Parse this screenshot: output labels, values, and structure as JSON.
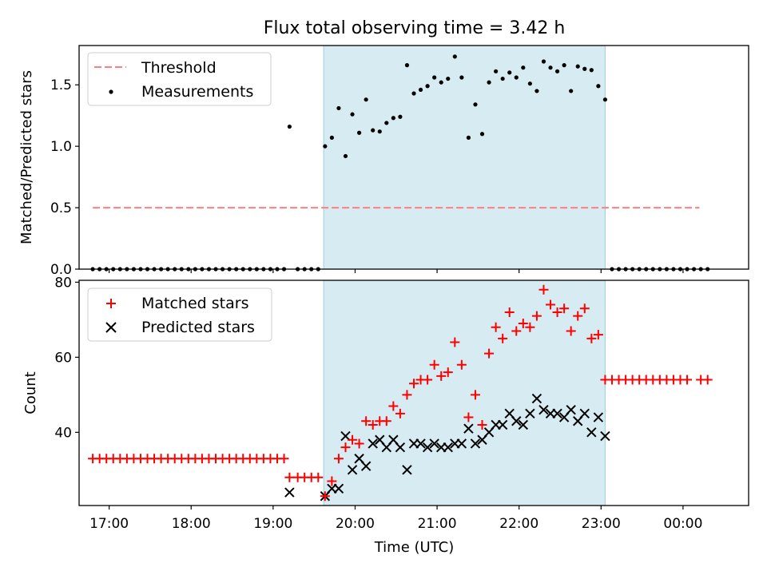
{
  "title": "Flux total observing time = 3.42 h",
  "colors": {
    "threshold": "#ff7f7f",
    "measurement": "#000000",
    "matched": "#ff0000",
    "predicted": "#000000",
    "span": "#add8e6"
  },
  "chart_data": [
    {
      "type": "scatter",
      "panel": "top",
      "ylabel": "Matched/Predicted stars",
      "xlabel": "",
      "xlim": [
        "16:38",
        "00:48"
      ],
      "ylim": [
        0,
        1.82
      ],
      "yticks": [
        0.0,
        0.5,
        1.0,
        1.5
      ],
      "ytick_labels": [
        "0.0",
        "0.5",
        "1.0",
        "1.5"
      ],
      "grid": false,
      "legend_position": "upper-left",
      "highlight_span": [
        "19:37",
        "23:03"
      ],
      "threshold": {
        "name": "Threshold",
        "y": 0.5,
        "x_range": [
          "16:48",
          "00:12"
        ]
      },
      "series": [
        {
          "name": "Measurements",
          "marker": "dot",
          "x": [
            "16:48",
            "16:53",
            "16:58",
            "17:03",
            "17:08",
            "17:13",
            "17:18",
            "17:23",
            "17:28",
            "17:33",
            "17:38",
            "17:43",
            "17:48",
            "17:53",
            "17:58",
            "18:03",
            "18:08",
            "18:13",
            "18:18",
            "18:23",
            "18:28",
            "18:33",
            "18:38",
            "18:43",
            "18:48",
            "18:53",
            "18:58",
            "19:03",
            "19:08",
            "19:12",
            "19:18",
            "19:23",
            "19:28",
            "19:33",
            "19:38",
            "19:43",
            "19:48",
            "19:53",
            "19:58",
            "20:03",
            "20:08",
            "20:13",
            "20:18",
            "20:23",
            "20:28",
            "20:33",
            "20:38",
            "20:43",
            "20:48",
            "20:53",
            "20:58",
            "21:03",
            "21:08",
            "21:13",
            "21:18",
            "21:23",
            "21:28",
            "21:33",
            "21:38",
            "21:43",
            "21:48",
            "21:53",
            "21:58",
            "22:03",
            "22:08",
            "22:13",
            "22:18",
            "22:23",
            "22:28",
            "22:33",
            "22:38",
            "22:43",
            "22:48",
            "22:53",
            "22:58",
            "23:03",
            "23:08",
            "23:13",
            "23:18",
            "23:23",
            "23:28",
            "23:33",
            "23:38",
            "23:43",
            "23:48",
            "23:53",
            "23:58",
            "00:03",
            "00:08",
            "00:13",
            "00:18"
          ],
          "y": [
            0,
            0,
            0,
            0,
            0,
            0,
            0,
            0,
            0,
            0,
            0,
            0,
            0,
            0,
            0,
            0,
            0,
            0,
            0,
            0,
            0,
            0,
            0,
            0,
            0,
            0,
            0,
            0,
            0,
            1.16,
            0,
            0,
            0,
            0,
            1.0,
            1.07,
            1.31,
            0.92,
            1.26,
            1.11,
            1.38,
            1.13,
            1.12,
            1.19,
            1.23,
            1.24,
            1.66,
            1.43,
            1.46,
            1.49,
            1.56,
            1.52,
            1.55,
            1.73,
            1.56,
            1.07,
            1.34,
            1.1,
            1.52,
            1.61,
            1.55,
            1.6,
            1.56,
            1.64,
            1.51,
            1.45,
            1.69,
            1.64,
            1.61,
            1.66,
            1.45,
            1.65,
            1.63,
            1.62,
            1.49,
            1.38,
            0,
            0,
            0,
            0,
            0,
            0,
            0,
            0,
            0,
            0,
            0,
            0,
            0,
            0,
            0
          ]
        }
      ]
    },
    {
      "type": "scatter",
      "panel": "bottom",
      "ylabel": "Count",
      "xlabel": "Time (UTC)",
      "xlim": [
        "16:38",
        "00:48"
      ],
      "ylim": [
        20.5,
        80.5
      ],
      "yticks": [
        40,
        60,
        80
      ],
      "xticks": [
        "17:00",
        "18:00",
        "19:00",
        "20:00",
        "21:00",
        "22:00",
        "23:00",
        "00:00"
      ],
      "grid": false,
      "legend_position": "upper-left",
      "highlight_span": [
        "19:37",
        "23:03"
      ],
      "series": [
        {
          "name": "Matched stars",
          "marker": "plus",
          "x": [
            "16:48",
            "16:53",
            "16:58",
            "17:03",
            "17:08",
            "17:13",
            "17:18",
            "17:23",
            "17:28",
            "17:33",
            "17:38",
            "17:43",
            "17:48",
            "17:53",
            "17:58",
            "18:03",
            "18:08",
            "18:13",
            "18:18",
            "18:23",
            "18:28",
            "18:33",
            "18:38",
            "18:43",
            "18:48",
            "18:53",
            "18:58",
            "19:03",
            "19:08",
            "19:12",
            "19:18",
            "19:23",
            "19:28",
            "19:33",
            "19:38",
            "19:43",
            "19:48",
            "19:53",
            "19:58",
            "20:03",
            "20:08",
            "20:13",
            "20:18",
            "20:23",
            "20:28",
            "20:33",
            "20:38",
            "20:43",
            "20:48",
            "20:53",
            "20:58",
            "21:03",
            "21:08",
            "21:13",
            "21:18",
            "21:23",
            "21:28",
            "21:33",
            "21:38",
            "21:43",
            "21:48",
            "21:53",
            "21:58",
            "22:03",
            "22:08",
            "22:13",
            "22:18",
            "22:23",
            "22:28",
            "22:33",
            "22:38",
            "22:43",
            "22:48",
            "22:53",
            "22:58",
            "23:03",
            "23:08",
            "23:13",
            "23:18",
            "23:23",
            "23:28",
            "23:33",
            "23:38",
            "23:43",
            "23:48",
            "23:53",
            "23:58",
            "00:03",
            "00:13",
            "00:18"
          ],
          "y": [
            33,
            33,
            33,
            33,
            33,
            33,
            33,
            33,
            33,
            33,
            33,
            33,
            33,
            33,
            33,
            33,
            33,
            33,
            33,
            33,
            33,
            33,
            33,
            33,
            33,
            33,
            33,
            33,
            33,
            28,
            28,
            28,
            28,
            28,
            23,
            27,
            33,
            36,
            38,
            37,
            43,
            42,
            43,
            43,
            47,
            45,
            50,
            53,
            54,
            54,
            58,
            55,
            56,
            64,
            58,
            44,
            50,
            42,
            61,
            68,
            65,
            72,
            67,
            69,
            68,
            71,
            78,
            74,
            72,
            73,
            67,
            71,
            73,
            65,
            66,
            54,
            54,
            54,
            54,
            54,
            54,
            54,
            54,
            54,
            54,
            54,
            54,
            54,
            54,
            54
          ]
        },
        {
          "name": "Predicted stars",
          "marker": "x",
          "x": [
            "19:12",
            "19:38",
            "19:43",
            "19:48",
            "19:53",
            "19:58",
            "20:03",
            "20:08",
            "20:13",
            "20:18",
            "20:23",
            "20:28",
            "20:33",
            "20:38",
            "20:43",
            "20:48",
            "20:53",
            "20:58",
            "21:03",
            "21:08",
            "21:13",
            "21:18",
            "21:23",
            "21:28",
            "21:33",
            "21:38",
            "21:43",
            "21:48",
            "21:53",
            "21:58",
            "22:03",
            "22:08",
            "22:13",
            "22:18",
            "22:23",
            "22:28",
            "22:33",
            "22:38",
            "22:43",
            "22:48",
            "22:53",
            "22:58",
            "23:03"
          ],
          "y": [
            24,
            23,
            25,
            25,
            39,
            30,
            33,
            31,
            37,
            38,
            36,
            38,
            36,
            30,
            37,
            37,
            36,
            37,
            36,
            36,
            37,
            37,
            41,
            37,
            38,
            40,
            42,
            42,
            45,
            43,
            42,
            45,
            49,
            46,
            45,
            45,
            44,
            46,
            43,
            45,
            40,
            44,
            39
          ]
        }
      ]
    }
  ]
}
